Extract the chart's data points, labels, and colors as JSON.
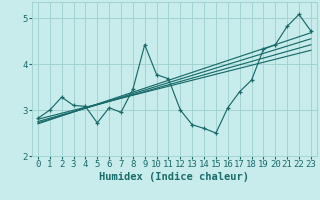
{
  "xlabel": "Humidex (Indice chaleur)",
  "ylabel": "",
  "bg_color": "#c8eceb",
  "grid_color": "#a0d4d3",
  "line_color": "#1a6b6b",
  "xlim": [
    -0.5,
    23.5
  ],
  "ylim": [
    2.0,
    5.35
  ],
  "yticks": [
    2,
    3,
    4,
    5
  ],
  "xticks": [
    0,
    1,
    2,
    3,
    4,
    5,
    6,
    7,
    8,
    9,
    10,
    11,
    12,
    13,
    14,
    15,
    16,
    17,
    18,
    19,
    20,
    21,
    22,
    23
  ],
  "main_data_x": [
    0,
    1,
    2,
    3,
    4,
    5,
    6,
    7,
    8,
    9,
    10,
    11,
    12,
    13,
    14,
    15,
    16,
    17,
    18,
    19,
    20,
    21,
    22,
    23
  ],
  "main_data_y": [
    2.82,
    3.0,
    3.28,
    3.1,
    3.08,
    2.72,
    3.05,
    2.95,
    3.45,
    4.42,
    3.77,
    3.68,
    3.0,
    2.68,
    2.6,
    2.5,
    3.05,
    3.4,
    3.65,
    4.32,
    4.42,
    4.82,
    5.08,
    4.72
  ],
  "regression_lines": [
    {
      "x": [
        0,
        23
      ],
      "y": [
        2.8,
        4.3
      ]
    },
    {
      "x": [
        0,
        23
      ],
      "y": [
        2.75,
        4.42
      ]
    },
    {
      "x": [
        0,
        23
      ],
      "y": [
        2.72,
        4.55
      ]
    },
    {
      "x": [
        0,
        23
      ],
      "y": [
        2.7,
        4.68
      ]
    }
  ],
  "font_color": "#1a6b6b",
  "tick_fontsize": 6.5,
  "label_fontsize": 7.5
}
